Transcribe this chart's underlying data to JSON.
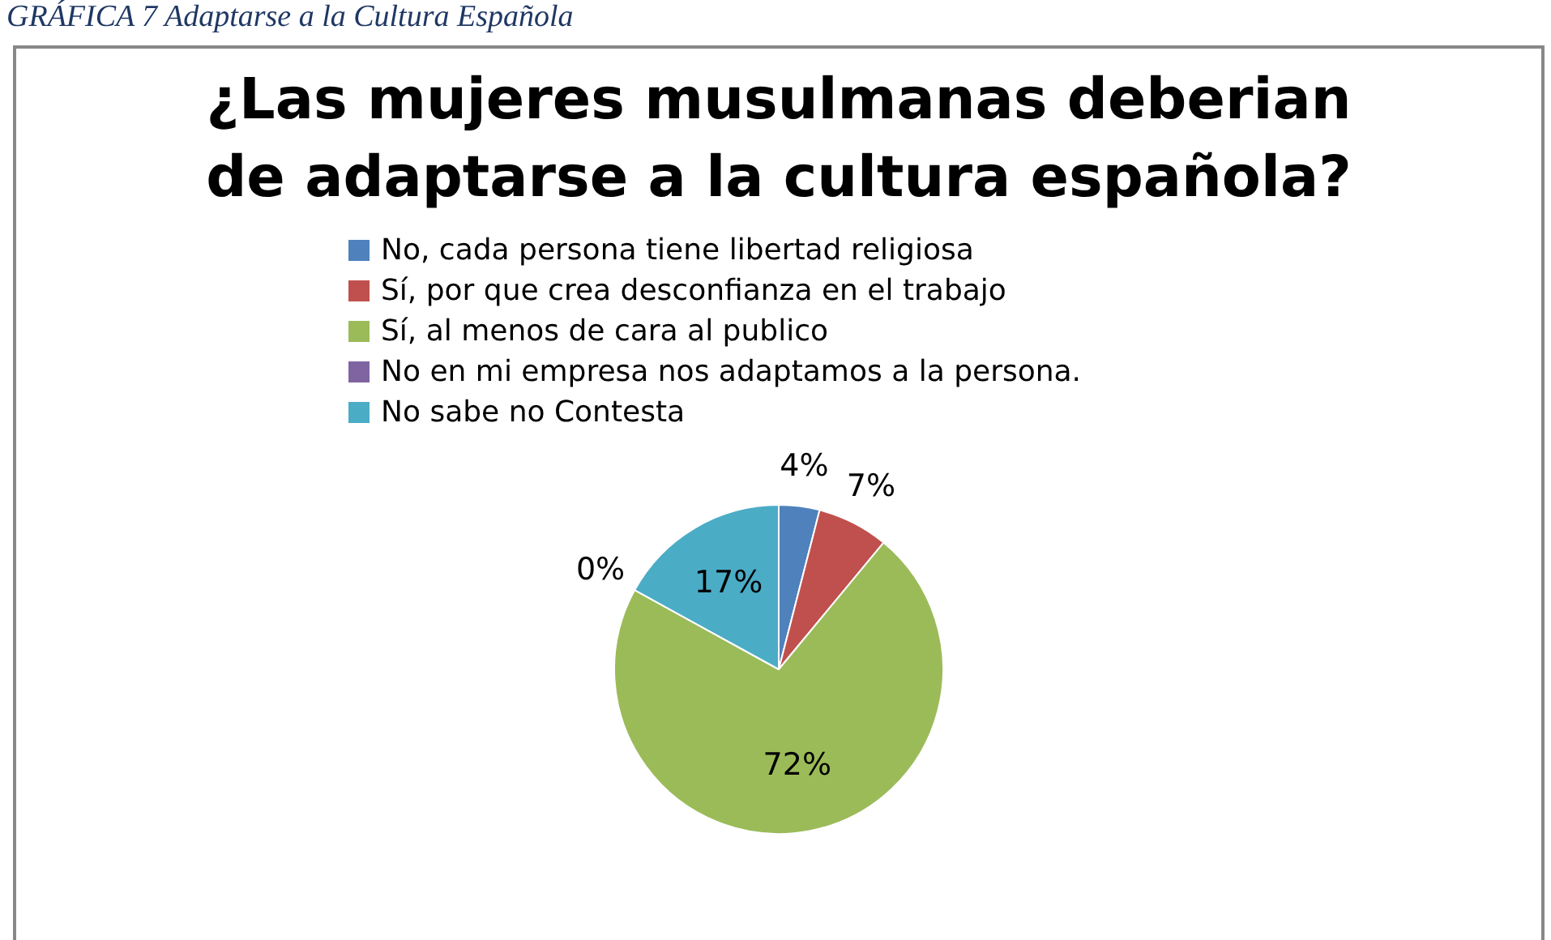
{
  "chart_data": {
    "type": "pie",
    "title": "¿Las mujeres musulmanas deberian de adaptarse a la cultura española?",
    "annotations": [
      "GRÁFICA 7  Adaptarse a la Cultura Española"
    ],
    "categories": [
      "No, cada persona tiene libertad religiosa",
      "Sí, por que crea desconfianza en el trabajo",
      "Sí, al menos de cara al publico",
      "No en mi empresa nos adaptamos a la persona.",
      "No sabe no Contesta"
    ],
    "values": [
      4,
      7,
      72,
      0,
      17
    ],
    "value_labels": [
      "4%",
      "7%",
      "72%",
      "0%",
      "17%"
    ],
    "colors": [
      "#4f81bd",
      "#c0504d",
      "#9bbb59",
      "#8064a2",
      "#4bacc6"
    ],
    "legend": "top"
  }
}
